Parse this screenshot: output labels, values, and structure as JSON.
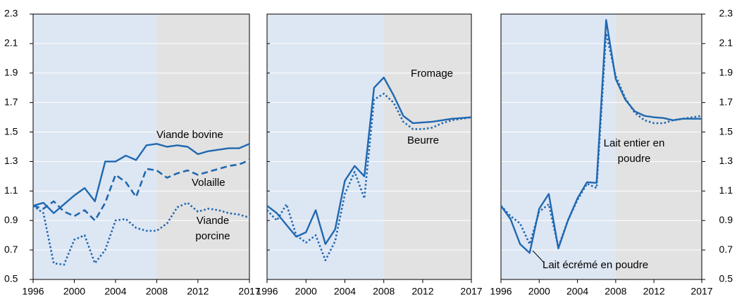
{
  "chart_data": [
    {
      "type": "line",
      "x": [
        1996,
        1997,
        1998,
        1999,
        2000,
        2001,
        2002,
        2003,
        2004,
        2005,
        2006,
        2007,
        2008,
        2009,
        2010,
        2011,
        2012,
        2013,
        2014,
        2015,
        2016,
        2017
      ],
      "xlim": [
        1996,
        2017
      ],
      "xticks": [
        1996,
        2000,
        2004,
        2008,
        2012,
        2017
      ],
      "ylim": [
        0.5,
        2.3
      ],
      "yticks": [
        0.5,
        0.7,
        0.9,
        1.1,
        1.3,
        1.5,
        1.7,
        1.9,
        2.1,
        2.3
      ],
      "ytick_side": "left",
      "grid": true,
      "shade_until": 2008,
      "series": [
        {
          "name": "Viande bovine",
          "color": "#1f68b0",
          "dash": "solid",
          "values": [
            1.0,
            1.02,
            0.95,
            1.01,
            1.07,
            1.12,
            1.03,
            1.3,
            1.3,
            1.34,
            1.31,
            1.41,
            1.42,
            1.4,
            1.41,
            1.4,
            1.35,
            1.37,
            1.38,
            1.39,
            1.39,
            1.42
          ]
        },
        {
          "name": "Volaille",
          "color": "#1f68b0",
          "dash": "dashed",
          "values": [
            1.0,
            0.98,
            1.03,
            0.96,
            0.93,
            0.97,
            0.9,
            1.02,
            1.21,
            1.16,
            1.06,
            1.25,
            1.24,
            1.19,
            1.22,
            1.24,
            1.21,
            1.23,
            1.25,
            1.27,
            1.28,
            1.31
          ]
        },
        {
          "name": "Viande porcine",
          "color": "#1f68b0",
          "dash": "dotted",
          "values": [
            1.0,
            0.95,
            0.61,
            0.6,
            0.77,
            0.8,
            0.61,
            0.7,
            0.9,
            0.91,
            0.85,
            0.83,
            0.83,
            0.88,
            0.99,
            1.02,
            0.96,
            0.98,
            0.97,
            0.95,
            0.94,
            0.92
          ]
        }
      ]
    },
    {
      "type": "line",
      "x": [
        1996,
        1997,
        1998,
        1999,
        2000,
        2001,
        2002,
        2003,
        2004,
        2005,
        2006,
        2007,
        2008,
        2009,
        2010,
        2011,
        2012,
        2013,
        2014,
        2015,
        2016,
        2017
      ],
      "xlim": [
        1996,
        2017
      ],
      "xticks": [
        1996,
        2000,
        2004,
        2008,
        2012,
        2017
      ],
      "ylim": [
        0.5,
        2.3
      ],
      "yticks": [
        0.5,
        0.7,
        0.9,
        1.1,
        1.3,
        1.5,
        1.7,
        1.9,
        2.1,
        2.3
      ],
      "ytick_side": "none",
      "grid": true,
      "shade_until": 2008,
      "series": [
        {
          "name": "Fromage",
          "color": "#1f68b0",
          "dash": "solid",
          "values": [
            1.0,
            0.95,
            0.87,
            0.79,
            0.82,
            0.97,
            0.74,
            0.84,
            1.17,
            1.27,
            1.2,
            1.8,
            1.87,
            1.75,
            1.61,
            1.56,
            1.565,
            1.57,
            1.58,
            1.59,
            1.595,
            1.6
          ]
        },
        {
          "name": "Beurre",
          "color": "#1f68b0",
          "dash": "dotted",
          "values": [
            0.97,
            0.9,
            1.01,
            0.8,
            0.75,
            0.8,
            0.63,
            0.76,
            1.08,
            1.23,
            1.05,
            1.72,
            1.76,
            1.7,
            1.57,
            1.52,
            1.52,
            1.53,
            1.56,
            1.58,
            1.59,
            1.6
          ]
        }
      ]
    },
    {
      "type": "line",
      "x": [
        1996,
        1997,
        1998,
        1999,
        2000,
        2001,
        2002,
        2003,
        2004,
        2005,
        2006,
        2007,
        2008,
        2009,
        2010,
        2011,
        2012,
        2013,
        2014,
        2015,
        2016,
        2017
      ],
      "xlim": [
        1996,
        2017
      ],
      "xticks": [
        1996,
        2000,
        2004,
        2008,
        2012,
        2017
      ],
      "ylim": [
        0.5,
        2.3
      ],
      "yticks": [
        0.5,
        0.7,
        0.9,
        1.1,
        1.3,
        1.5,
        1.7,
        1.9,
        2.1,
        2.3
      ],
      "ytick_side": "right",
      "grid": true,
      "shade_until": 2008,
      "series": [
        {
          "name": "Lait écrémé en poudre",
          "color": "#1f68b0",
          "dash": "solid",
          "values": [
            1.0,
            0.91,
            0.74,
            0.68,
            0.98,
            1.08,
            0.71,
            0.9,
            1.05,
            1.16,
            1.155,
            2.26,
            1.86,
            1.72,
            1.64,
            1.61,
            1.6,
            1.595,
            1.58,
            1.59,
            1.59,
            1.59
          ]
        },
        {
          "name": "Lait entier en poudre",
          "color": "#1f68b0",
          "dash": "dotted",
          "values": [
            1.0,
            0.93,
            0.88,
            0.74,
            0.96,
            1.01,
            0.72,
            0.9,
            1.04,
            1.15,
            1.12,
            2.17,
            1.88,
            1.73,
            1.63,
            1.58,
            1.56,
            1.56,
            1.58,
            1.59,
            1.6,
            1.61
          ]
        }
      ]
    }
  ]
}
